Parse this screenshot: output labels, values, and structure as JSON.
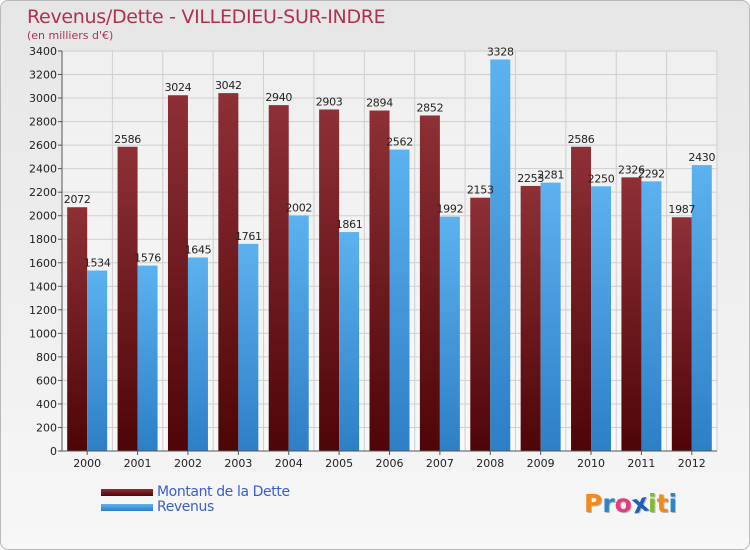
{
  "header": {
    "title": "Revenus/Dette - VILLEDIEU-SUR-INDRE",
    "subtitle": "(en milliers d'€)"
  },
  "chart_data": {
    "type": "bar",
    "title": "Revenus/Dette - VILLEDIEU-SUR-INDRE",
    "ylabel": "(en milliers d'€)",
    "categories": [
      "2000",
      "2001",
      "2002",
      "2003",
      "2004",
      "2005",
      "2006",
      "2007",
      "2008",
      "2009",
      "2010",
      "2011",
      "2012"
    ],
    "series": [
      {
        "name": "Montant de la Dette",
        "values": [
          2072,
          2586,
          3024,
          3042,
          2940,
          2903,
          2894,
          2852,
          2153,
          2253,
          2586,
          2326,
          1987
        ],
        "color": "#7a1a1f"
      },
      {
        "name": "Revenus",
        "values": [
          1534,
          1576,
          1645,
          1761,
          2002,
          1861,
          2562,
          1992,
          3328,
          2281,
          2250,
          2292,
          2430
        ],
        "color": "#4aa3e6"
      }
    ],
    "ylim": [
      0,
      3400
    ],
    "ytick_step": 200,
    "yticks": [
      "0",
      "200",
      "400",
      "600",
      "800",
      "1000",
      "1200",
      "1400",
      "1600",
      "1800",
      "2000",
      "2200",
      "2400",
      "2600",
      "2800",
      "3000",
      "3200",
      "3400"
    ],
    "grid": true,
    "legend_position": "bottom-left"
  },
  "legend": {
    "items": [
      {
        "label": "Montant de la Dette",
        "color": "#7a1a1f"
      },
      {
        "label": "Revenus",
        "color": "#4aa3e6"
      }
    ]
  },
  "logo": {
    "text": "Proxiti",
    "letters": [
      "P",
      "r",
      "o",
      "x",
      "i",
      "t",
      "i"
    ],
    "colors": [
      "#f08a1c",
      "#2e86c9",
      "#e83a7b",
      "#1f5fb8",
      "#7dbf2a",
      "#f08a1c",
      "#2e86c9"
    ]
  }
}
